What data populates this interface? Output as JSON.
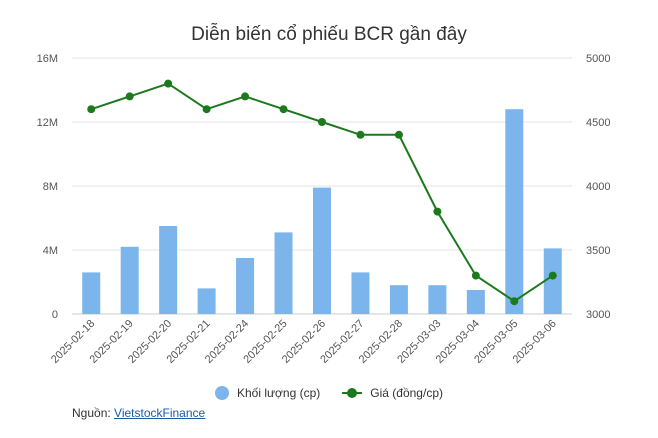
{
  "chart_data": {
    "type": "bar+line",
    "title": "Diễn biến cổ phiếu BCR gần đây",
    "categories": [
      "2025-02-18",
      "2025-02-19",
      "2025-02-20",
      "2025-02-21",
      "2025-02-24",
      "2025-02-25",
      "2025-02-26",
      "2025-02-27",
      "2025-02-28",
      "2025-03-03",
      "2025-03-04",
      "2025-03-05",
      "2025-03-06"
    ],
    "series": [
      {
        "name": "Khối lượng (cp)",
        "type": "bar",
        "axis": "left",
        "color": "#7cb5ec",
        "values": [
          2600000,
          4200000,
          5500000,
          1600000,
          3500000,
          5100000,
          7900000,
          2600000,
          1800000,
          1800000,
          1500000,
          12800000,
          4100000
        ]
      },
      {
        "name": "Giá (đồng/cp)",
        "type": "line",
        "axis": "right",
        "color": "#1b7a1b",
        "values": [
          4600,
          4700,
          4800,
          4600,
          4700,
          4600,
          4500,
          4400,
          4400,
          3800,
          3300,
          3100,
          3300
        ]
      }
    ],
    "left_axis": {
      "ylim": [
        0,
        16000000
      ],
      "ticks": [
        0,
        4000000,
        8000000,
        12000000,
        16000000
      ],
      "tick_labels": [
        "0",
        "4M",
        "8M",
        "12M",
        "16M"
      ]
    },
    "right_axis": {
      "ylim": [
        3000,
        5000
      ],
      "ticks": [
        3000,
        3500,
        4000,
        4500,
        5000
      ],
      "tick_labels": [
        "3000",
        "3500",
        "4000",
        "4500",
        "5000"
      ]
    },
    "grid": true,
    "legend_position": "bottom"
  },
  "source": {
    "label": "Nguồn:",
    "link_text": "VietstockFinance"
  }
}
